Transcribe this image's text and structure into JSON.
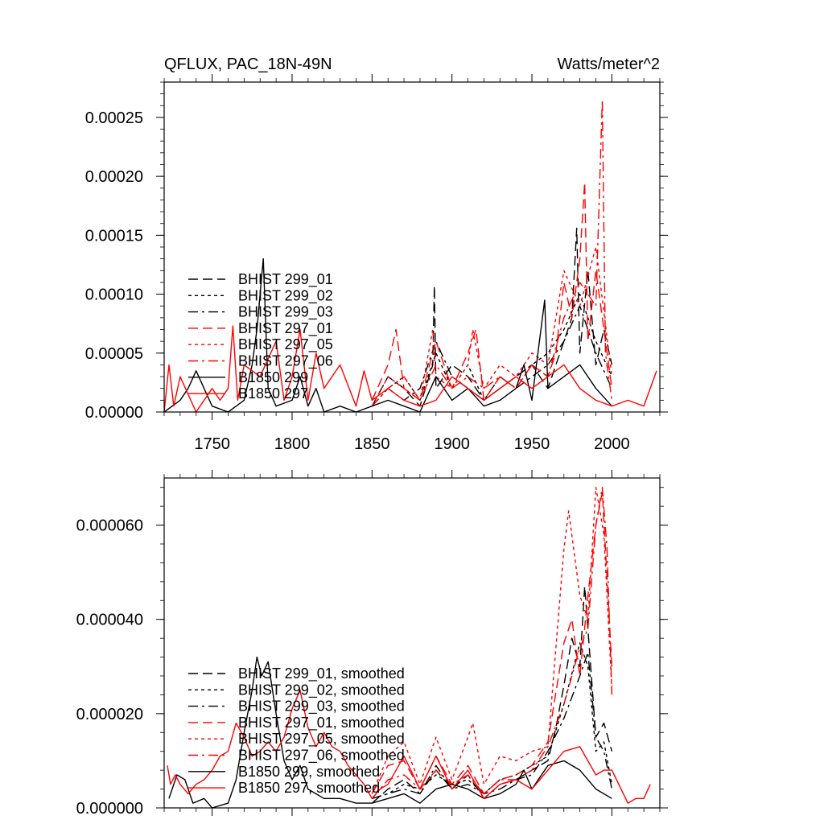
{
  "chart_data": [
    {
      "type": "line",
      "title_left": "QFLUX, PAC_18N-49N",
      "title_right": "Watts/meter^2",
      "xlim": [
        1720,
        2030
      ],
      "ylim": [
        0,
        0.00028
      ],
      "x_ticks": [
        1750,
        1800,
        1850,
        1900,
        1950,
        2000
      ],
      "x_tick_labels": [
        "1750",
        "1800",
        "1850",
        "1900",
        "1950",
        "2000"
      ],
      "y_ticks": [
        0,
        5e-05,
        0.0001,
        0.00015,
        0.0002,
        0.00025
      ],
      "y_tick_labels": [
        "0.00000",
        "0.00005",
        "0.00010",
        "0.00015",
        "0.00020",
        "0.00025"
      ],
      "legend_position": "left",
      "series": [
        {
          "name": "BHIST 299_01",
          "color": "#000000",
          "dash": "long-dash",
          "x": [
            1850,
            1860,
            1870,
            1880,
            1888,
            1889,
            1890,
            1900,
            1910,
            1920,
            1930,
            1940,
            1950,
            1960,
            1970,
            1975,
            1978,
            1980,
            1985,
            1990,
            1995,
            2000
          ],
          "y": [
            5e-06,
            3e-05,
            2e-05,
            5e-06,
            4e-05,
            0.000107,
            2e-05,
            4e-05,
            3e-05,
            1e-05,
            2e-05,
            3e-05,
            4e-05,
            2e-05,
            6e-05,
            8e-05,
            0.000156,
            5e-05,
            0.00012,
            4e-05,
            7e-05,
            4e-05
          ]
        },
        {
          "name": "BHIST 299_02",
          "color": "#000000",
          "dash": "short-dash",
          "x": [
            1850,
            1860,
            1870,
            1880,
            1890,
            1900,
            1910,
            1920,
            1930,
            1940,
            1950,
            1960,
            1970,
            1980,
            1990,
            2000
          ],
          "y": [
            5e-06,
            2e-05,
            3e-05,
            1e-05,
            5e-05,
            2e-05,
            4e-05,
            1e-05,
            2e-05,
            3e-05,
            4e-05,
            5e-05,
            7e-05,
            0.0001,
            6e-05,
            3e-05
          ]
        },
        {
          "name": "BHIST 299_03",
          "color": "#000000",
          "dash": "dash-dot",
          "x": [
            1850,
            1860,
            1870,
            1880,
            1890,
            1900,
            1910,
            1920,
            1930,
            1940,
            1950,
            1960,
            1970,
            1980,
            1990,
            2000
          ],
          "y": [
            5e-06,
            2e-05,
            1e-05,
            2e-05,
            6e-05,
            3e-05,
            2e-05,
            1e-05,
            3e-05,
            2e-05,
            3e-05,
            4e-05,
            6e-05,
            9e-05,
            5e-05,
            2e-05
          ]
        },
        {
          "name": "BHIST 297_01",
          "color": "#ff0000",
          "dash": "long-dash",
          "x": [
            1850,
            1860,
            1865,
            1870,
            1880,
            1890,
            1900,
            1910,
            1915,
            1920,
            1930,
            1940,
            1950,
            1960,
            1965,
            1970,
            1975,
            1980,
            1983,
            1985,
            1990,
            1995,
            2000
          ],
          "y": [
            1e-05,
            4e-05,
            7e-05,
            2e-05,
            1e-05,
            6e-05,
            2e-05,
            5e-05,
            7e-05,
            1e-05,
            3e-05,
            2e-05,
            4e-05,
            3e-05,
            5e-05,
            0.00011,
            8e-05,
            0.00013,
            0.000195,
            6e-05,
            0.00012,
            7e-05,
            2e-05
          ]
        },
        {
          "name": "BHIST 297_05",
          "color": "#ff0000",
          "dash": "short-dash",
          "x": [
            1850,
            1860,
            1870,
            1880,
            1888,
            1890,
            1900,
            1910,
            1913,
            1920,
            1930,
            1940,
            1950,
            1960,
            1970,
            1980,
            1990,
            2000
          ],
          "y": [
            5e-06,
            3e-05,
            2e-05,
            1e-05,
            7e-05,
            3e-05,
            2e-05,
            4e-05,
            7e-05,
            2e-05,
            4e-05,
            3e-05,
            5e-05,
            4e-05,
            0.00012,
            9e-05,
            0.00014,
            3e-05
          ]
        },
        {
          "name": "BHIST 297_06",
          "color": "#ff0000",
          "dash": "dash-dot",
          "x": [
            1850,
            1860,
            1870,
            1880,
            1890,
            1900,
            1910,
            1920,
            1930,
            1940,
            1950,
            1960,
            1970,
            1980,
            1990,
            1994,
            1996,
            2000
          ],
          "y": [
            5e-06,
            2e-05,
            3e-05,
            1e-05,
            4e-05,
            2e-05,
            3e-05,
            2e-05,
            3e-05,
            2e-05,
            4e-05,
            3e-05,
            8e-05,
            0.00011,
            9e-05,
            0.000265,
            5e-05,
            1e-05
          ]
        },
        {
          "name": "B1850 299",
          "color": "#000000",
          "dash": "solid",
          "x": [
            1720,
            1730,
            1735,
            1740,
            1750,
            1760,
            1770,
            1775,
            1778,
            1782,
            1785,
            1790,
            1800,
            1805,
            1810,
            1815,
            1820,
            1830,
            1840,
            1850,
            1860,
            1870,
            1880,
            1890,
            1900,
            1910,
            1920,
            1930,
            1940,
            1945,
            1950,
            1958,
            1960,
            1970,
            1980,
            1990,
            2000
          ],
          "y": [
            0,
            1e-05,
            2e-05,
            3.5e-05,
            5e-06,
            0,
            1e-05,
            4e-05,
            7e-05,
            0.00013,
            2e-05,
            5e-06,
            1e-05,
            3e-05,
            5e-06,
            2e-05,
            0,
            5e-06,
            0,
            5e-06,
            1e-05,
            5e-06,
            0,
            3e-05,
            1e-05,
            2e-05,
            5e-06,
            1e-05,
            2e-05,
            4e-05,
            1e-05,
            9.5e-05,
            2e-05,
            3e-05,
            4e-05,
            2e-05,
            5e-06
          ]
        },
        {
          "name": "B1850 297",
          "color": "#ff0000",
          "dash": "solid",
          "x": [
            1720,
            1723,
            1726,
            1730,
            1740,
            1750,
            1755,
            1760,
            1763,
            1766,
            1770,
            1780,
            1790,
            1795,
            1800,
            1805,
            1810,
            1815,
            1820,
            1830,
            1840,
            1845,
            1850,
            1860,
            1870,
            1880,
            1890,
            1900,
            1910,
            1920,
            1930,
            1940,
            1950,
            1960,
            1970,
            1980,
            1990,
            2000,
            2010,
            2020,
            2028
          ],
          "y": [
            0,
            4e-05,
            5e-06,
            3e-05,
            0,
            2e-05,
            1e-05,
            2e-05,
            7.3e-05,
            1e-05,
            4e-05,
            3e-05,
            6e-05,
            1e-05,
            3e-05,
            7e-05,
            1e-05,
            5e-05,
            2e-05,
            4e-05,
            5e-06,
            3.5e-05,
            1e-05,
            2e-05,
            1e-05,
            5e-06,
            1e-05,
            3e-05,
            2e-05,
            1e-05,
            2e-05,
            3e-05,
            2e-05,
            3e-05,
            4e-05,
            2e-05,
            1e-05,
            5e-06,
            1e-05,
            5e-06,
            3.5e-05
          ]
        }
      ]
    },
    {
      "type": "line",
      "xlim": [
        1720,
        2030
      ],
      "ylim": [
        0,
        7e-05
      ],
      "x_ticks": [
        1750,
        1800,
        1850,
        1900,
        1950,
        2000
      ],
      "y_ticks": [
        0,
        2e-05,
        4e-05,
        6e-05
      ],
      "y_tick_labels": [
        "0.000000",
        "0.000020",
        "0.000040",
        "0.000060"
      ],
      "legend_position": "left",
      "series": [
        {
          "name": "BHIST 299_01, smoothed",
          "color": "#000000",
          "dash": "long-dash",
          "x": [
            1850,
            1860,
            1870,
            1880,
            1890,
            1900,
            1910,
            1920,
            1930,
            1940,
            1950,
            1960,
            1965,
            1970,
            1975,
            1980,
            1983,
            1985,
            1990,
            1995,
            2000
          ],
          "y": [
            1e-06,
            4e-06,
            6e-06,
            3e-06,
            8e-06,
            4e-06,
            7e-06,
            2e-06,
            5e-06,
            6e-06,
            8e-06,
            1e-05,
            1.7e-05,
            2.6e-05,
            3.6e-05,
            3e-05,
            4.7e-05,
            3.8e-05,
            1.5e-05,
            1.8e-05,
            1.2e-05
          ]
        },
        {
          "name": "BHIST 299_02, smoothed",
          "color": "#000000",
          "dash": "short-dash",
          "x": [
            1850,
            1860,
            1870,
            1880,
            1890,
            1900,
            1910,
            1920,
            1930,
            1940,
            1950,
            1960,
            1970,
            1980,
            1985,
            1990,
            1995,
            2000
          ],
          "y": [
            2e-06,
            3e-06,
            5e-06,
            4e-06,
            7e-06,
            5e-06,
            6e-06,
            3e-06,
            6e-06,
            7e-06,
            9e-06,
            1.1e-05,
            2.2e-05,
            3.5e-05,
            3e-05,
            1.2e-05,
            1.4e-05,
            5e-06
          ]
        },
        {
          "name": "BHIST 299_03, smoothed",
          "color": "#000000",
          "dash": "dash-dot",
          "x": [
            1850,
            1860,
            1870,
            1880,
            1890,
            1900,
            1910,
            1920,
            1930,
            1940,
            1950,
            1960,
            1970,
            1980,
            1985,
            1990,
            1995,
            2000
          ],
          "y": [
            2e-06,
            3e-06,
            4e-06,
            3e-06,
            9e-06,
            4e-06,
            5e-06,
            3e-06,
            4e-06,
            6e-06,
            7e-06,
            1.2e-05,
            1.9e-05,
            2.8e-05,
            3.3e-05,
            1.5e-05,
            1.2e-05,
            4e-06
          ]
        },
        {
          "name": "BHIST 297_01, smoothed",
          "color": "#ff0000",
          "dash": "long-dash",
          "x": [
            1850,
            1860,
            1870,
            1880,
            1890,
            1900,
            1910,
            1920,
            1930,
            1940,
            1950,
            1960,
            1970,
            1975,
            1980,
            1985,
            1990,
            1994,
            2000
          ],
          "y": [
            3e-06,
            9e-06,
            1e-05,
            4e-06,
            1.1e-05,
            5e-06,
            9e-06,
            3e-06,
            6e-06,
            7e-06,
            9e-06,
            1.4e-05,
            3.5e-05,
            4e-05,
            2.8e-05,
            4.5e-05,
            6e-05,
            6.7e-05,
            3e-05
          ]
        },
        {
          "name": "BHIST 297_05, smoothed",
          "color": "#ff0000",
          "dash": "short-dash",
          "x": [
            1850,
            1860,
            1870,
            1880,
            1890,
            1900,
            1910,
            1913,
            1920,
            1930,
            1940,
            1950,
            1960,
            1970,
            1973,
            1980,
            1985,
            1990,
            1995,
            2000
          ],
          "y": [
            3e-06,
            1.1e-05,
            1.4e-05,
            5e-06,
            1.5e-05,
            6e-06,
            1.5e-05,
            1.8e-05,
            5e-06,
            1.1e-05,
            1e-05,
            1.2e-05,
            1.3e-05,
            5.5e-05,
            6.3e-05,
            4.5e-05,
            4e-05,
            6.8e-05,
            5.8e-05,
            2.5e-05
          ]
        },
        {
          "name": "BHIST 297_06, smoothed",
          "color": "#ff0000",
          "dash": "dash-dot",
          "x": [
            1850,
            1860,
            1870,
            1880,
            1890,
            1900,
            1910,
            1920,
            1930,
            1940,
            1950,
            1960,
            1970,
            1980,
            1985,
            1990,
            1994,
            1997,
            2000
          ],
          "y": [
            2e-06,
            6e-06,
            7e-06,
            4e-06,
            8e-06,
            5e-06,
            7e-06,
            3e-06,
            6e-06,
            6e-06,
            8e-06,
            1.3e-05,
            2.2e-05,
            3.4e-05,
            3.8e-05,
            6e-05,
            6.8e-05,
            5.5e-05,
            2.4e-05
          ]
        },
        {
          "name": "B1850 299, smoothed",
          "color": "#000000",
          "dash": "solid",
          "x": [
            1723,
            1728,
            1733,
            1738,
            1745,
            1750,
            1760,
            1765,
            1770,
            1775,
            1778,
            1781,
            1785,
            1790,
            1795,
            1800,
            1805,
            1810,
            1820,
            1830,
            1840,
            1850,
            1860,
            1870,
            1880,
            1890,
            1900,
            1910,
            1920,
            1930,
            1940,
            1945,
            1950,
            1960,
            1970,
            1980,
            1990,
            2000
          ],
          "y": [
            2e-06,
            7e-06,
            6e-06,
            1e-06,
            2e-06,
            0,
            1e-06,
            6e-06,
            1.6e-05,
            2.5e-05,
            3.2e-05,
            2.8e-05,
            3.1e-05,
            2e-05,
            1e-05,
            6e-06,
            9e-06,
            4e-06,
            2e-06,
            2e-06,
            1e-06,
            1e-06,
            2e-06,
            3e-06,
            1e-06,
            4e-06,
            5e-06,
            4e-06,
            2e-06,
            3e-06,
            5e-06,
            8e-06,
            4e-06,
            9e-06,
            1e-05,
            8e-06,
            4e-06,
            2e-06
          ]
        },
        {
          "name": "B1850 297, smoothed",
          "color": "#ff0000",
          "dash": "solid",
          "x": [
            1722,
            1724,
            1727,
            1730,
            1735,
            1740,
            1745,
            1750,
            1755,
            1760,
            1765,
            1770,
            1775,
            1780,
            1785,
            1790,
            1795,
            1800,
            1805,
            1810,
            1815,
            1820,
            1825,
            1830,
            1835,
            1840,
            1845,
            1850,
            1855,
            1860,
            1870,
            1880,
            1890,
            1900,
            1910,
            1920,
            1930,
            1940,
            1950,
            1960,
            1970,
            1980,
            1990,
            1995,
            2000,
            2010,
            2015,
            2020,
            2024
          ],
          "y": [
            9e-06,
            5e-06,
            7e-06,
            5e-06,
            3e-06,
            5e-06,
            6e-06,
            8e-06,
            1.1e-05,
            1.2e-05,
            1.8e-05,
            1.5e-05,
            1.1e-05,
            1.2e-05,
            1.4e-05,
            1.2e-05,
            1.5e-05,
            2.1e-05,
            2.5e-05,
            1.7e-05,
            1.3e-05,
            1.6e-05,
            1.3e-05,
            1.2e-05,
            9e-06,
            7e-06,
            5e-06,
            2e-06,
            4e-06,
            5e-06,
            1.1e-05,
            4e-06,
            1.1e-05,
            4e-06,
            8e-06,
            2e-06,
            5e-06,
            6e-06,
            4e-06,
            8e-06,
            1.2e-05,
            1.3e-05,
            7e-06,
            8e-06,
            8e-06,
            1e-06,
            2e-06,
            2e-06,
            5e-06
          ]
        }
      ]
    }
  ]
}
